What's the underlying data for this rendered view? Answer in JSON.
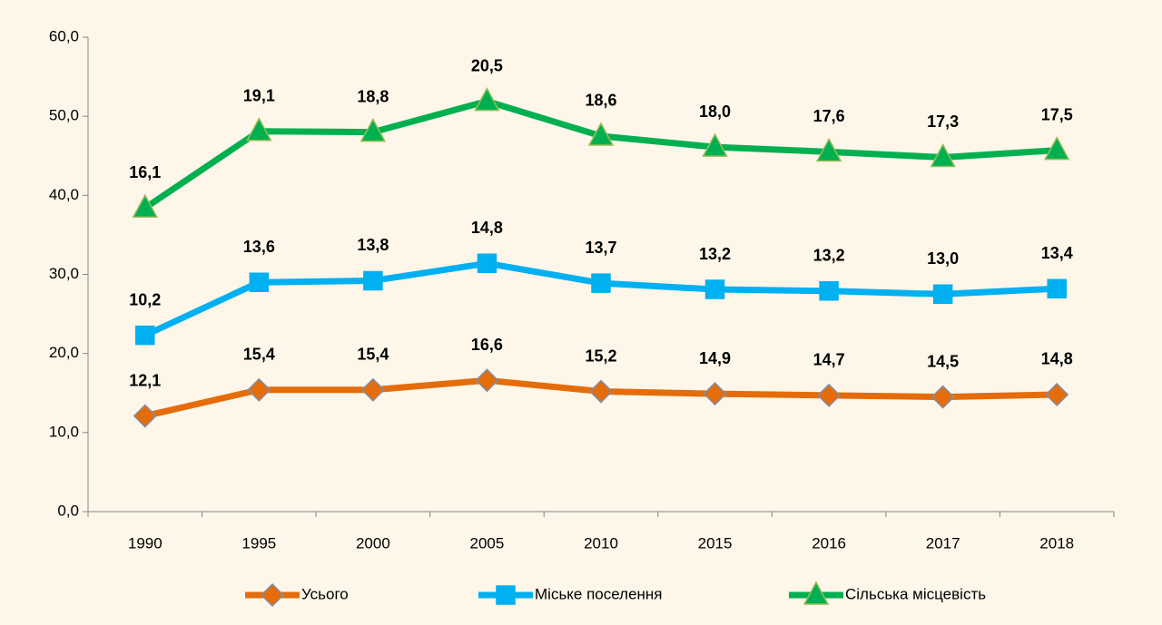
{
  "chart_data": {
    "type": "line",
    "stacked": true,
    "categories": [
      "1990",
      "1995",
      "2000",
      "2005",
      "2010",
      "2015",
      "2016",
      "2017",
      "2018"
    ],
    "series": [
      {
        "name": "Усього",
        "color": "#e46c0a",
        "marker": "diamond",
        "marker_stroke": "#7f8fa9",
        "values": [
          12.1,
          15.4,
          15.4,
          16.6,
          15.2,
          14.9,
          14.7,
          14.5,
          14.8
        ],
        "value_labels": [
          "12,1",
          "15,4",
          "15,4",
          "16,6",
          "15,2",
          "14,9",
          "14,7",
          "14,5",
          "14,8"
        ]
      },
      {
        "name": "Міське поселення",
        "color": "#00b0f0",
        "marker": "square",
        "marker_stroke": "#00b0f0",
        "values": [
          10.2,
          13.6,
          13.8,
          14.8,
          13.7,
          13.2,
          13.2,
          13.0,
          13.4
        ],
        "value_labels": [
          "10,2",
          "13,6",
          "13,8",
          "14,8",
          "13,7",
          "13,2",
          "13,2",
          "13,0",
          "13,4"
        ]
      },
      {
        "name": "Сільська місцевість",
        "color": "#00b050",
        "marker": "triangle",
        "marker_stroke": "#9bbb59",
        "values": [
          16.1,
          19.1,
          18.8,
          20.5,
          18.6,
          18.0,
          17.6,
          17.3,
          17.5
        ],
        "value_labels": [
          "16,1",
          "19,1",
          "18,8",
          "20,5",
          "18,6",
          "18,0",
          "17,6",
          "17,3",
          "17,5"
        ]
      }
    ],
    "ylim": [
      0,
      60
    ],
    "yticks": [
      {
        "value": 0,
        "label": "0,0"
      },
      {
        "value": 10,
        "label": "10,0"
      },
      {
        "value": 20,
        "label": "20,0"
      },
      {
        "value": 30,
        "label": "30,0"
      },
      {
        "value": 40,
        "label": "40,0"
      },
      {
        "value": 50,
        "label": "50,0"
      },
      {
        "value": 60,
        "label": "60,0"
      }
    ],
    "grid": false,
    "legend": "bottom"
  }
}
